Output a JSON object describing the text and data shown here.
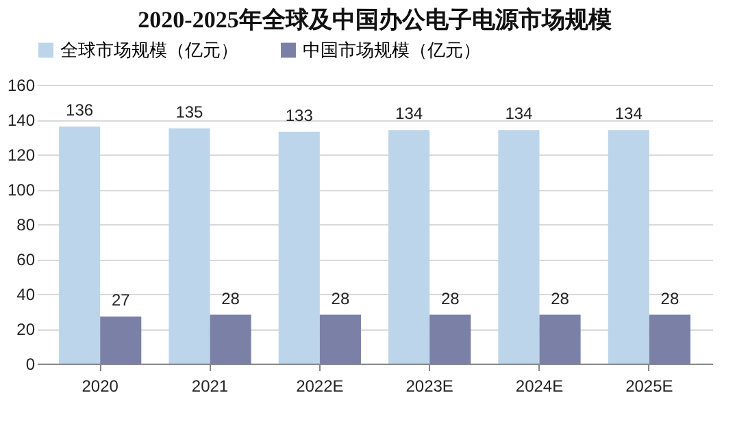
{
  "chart_data": {
    "type": "bar",
    "title": "2020-2025年全球及中国办公电子电源市场规模",
    "categories": [
      "2020",
      "2021",
      "2022E",
      "2023E",
      "2024E",
      "2025E"
    ],
    "series": [
      {
        "name": "全球市场规模（亿元）",
        "color": "#bcd5ea",
        "values": [
          136,
          135,
          133,
          134,
          134,
          134
        ]
      },
      {
        "name": "中国市场规模（亿元）",
        "color": "#7b80a6",
        "values": [
          27,
          28,
          28,
          28,
          28,
          28
        ]
      }
    ],
    "ylim": [
      0,
      160
    ],
    "yticks": [
      0,
      20,
      40,
      60,
      80,
      100,
      120,
      140,
      160
    ],
    "grid": "y",
    "legend": "top",
    "data_labels": true
  }
}
